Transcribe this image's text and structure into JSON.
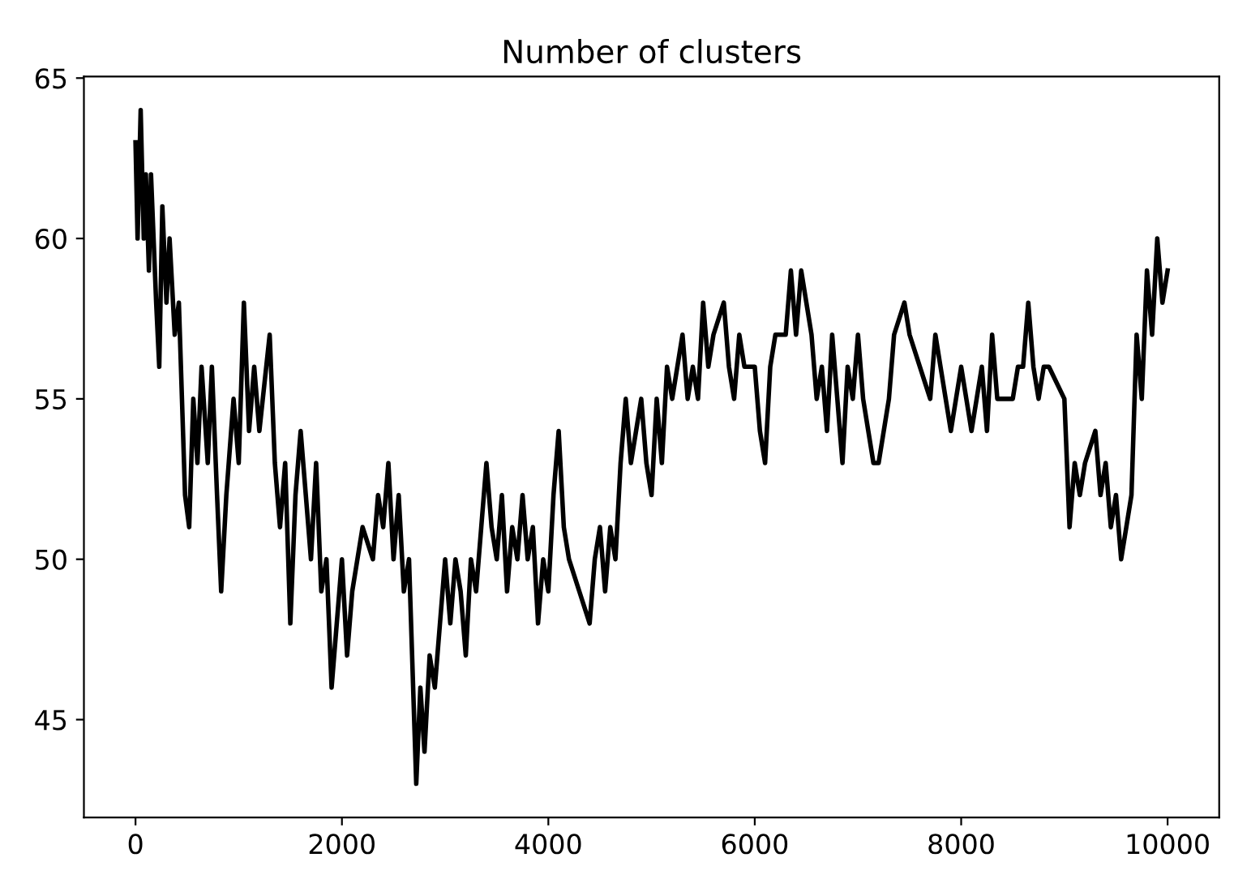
{
  "chart_data": {
    "type": "line",
    "title": "Number of clusters",
    "x": [
      0,
      20,
      50,
      80,
      100,
      130,
      150,
      200,
      230,
      260,
      300,
      330,
      380,
      420,
      450,
      480,
      520,
      560,
      600,
      640,
      700,
      740,
      790,
      830,
      880,
      950,
      1000,
      1050,
      1100,
      1150,
      1200,
      1300,
      1350,
      1400,
      1450,
      1500,
      1550,
      1600,
      1650,
      1700,
      1750,
      1800,
      1850,
      1900,
      1950,
      2000,
      2050,
      2100,
      2200,
      2300,
      2350,
      2400,
      2450,
      2500,
      2550,
      2600,
      2650,
      2700,
      2720,
      2760,
      2800,
      2850,
      2900,
      2950,
      3000,
      3050,
      3100,
      3150,
      3200,
      3250,
      3300,
      3350,
      3400,
      3450,
      3500,
      3550,
      3600,
      3650,
      3700,
      3750,
      3800,
      3850,
      3900,
      3950,
      4000,
      4050,
      4100,
      4150,
      4200,
      4300,
      4400,
      4450,
      4500,
      4550,
      4600,
      4650,
      4700,
      4750,
      4800,
      4850,
      4900,
      4950,
      5000,
      5050,
      5100,
      5150,
      5200,
      5300,
      5350,
      5400,
      5450,
      5500,
      5550,
      5600,
      5700,
      5750,
      5800,
      5850,
      5900,
      6000,
      6050,
      6100,
      6150,
      6200,
      6300,
      6350,
      6400,
      6450,
      6500,
      6550,
      6600,
      6650,
      6700,
      6750,
      6800,
      6850,
      6900,
      6950,
      7000,
      7050,
      7100,
      7150,
      7200,
      7300,
      7350,
      7450,
      7500,
      7600,
      7700,
      7750,
      7800,
      7900,
      7950,
      8000,
      8050,
      8100,
      8150,
      8200,
      8250,
      8300,
      8350,
      8400,
      8500,
      8550,
      8600,
      8650,
      8700,
      8750,
      8800,
      8850,
      9000,
      9050,
      9100,
      9150,
      9200,
      9300,
      9350,
      9400,
      9450,
      9500,
      9550,
      9600,
      9650,
      9700,
      9750,
      9800,
      9850,
      9900,
      9950,
      10000
    ],
    "series": [
      {
        "color": "#000000",
        "values": [
          63,
          60,
          64,
          60,
          62,
          59,
          62,
          58,
          56,
          61,
          58,
          60,
          57,
          58,
          55,
          52,
          51,
          55,
          53,
          56,
          53,
          56,
          52,
          49,
          52,
          55,
          53,
          58,
          54,
          56,
          54,
          57,
          53,
          51,
          53,
          48,
          52,
          54,
          52,
          50,
          53,
          49,
          50,
          46,
          48,
          50,
          47,
          49,
          51,
          50,
          52,
          51,
          53,
          50,
          52,
          49,
          50,
          45,
          43,
          46,
          44,
          47,
          46,
          48,
          50,
          48,
          50,
          49,
          47,
          50,
          49,
          51,
          53,
          51,
          50,
          52,
          49,
          51,
          50,
          52,
          50,
          51,
          48,
          50,
          49,
          52,
          54,
          51,
          50,
          49,
          48,
          50,
          51,
          49,
          51,
          50,
          53,
          55,
          53,
          54,
          55,
          53,
          52,
          55,
          53,
          56,
          55,
          57,
          55,
          56,
          55,
          58,
          56,
          57,
          58,
          56,
          55,
          57,
          56,
          56,
          54,
          53,
          56,
          57,
          57,
          59,
          57,
          59,
          58,
          57,
          55,
          56,
          54,
          57,
          55,
          53,
          56,
          55,
          57,
          55,
          54,
          53,
          53,
          55,
          57,
          58,
          57,
          56,
          55,
          57,
          56,
          54,
          55,
          56,
          55,
          54,
          55,
          56,
          54,
          57,
          55,
          55,
          55,
          56,
          56,
          58,
          56,
          55,
          56,
          56,
          55,
          51,
          53,
          52,
          53,
          54,
          52,
          53,
          51,
          52,
          50,
          51,
          52,
          57,
          55,
          59,
          57,
          60,
          58,
          59
        ]
      }
    ],
    "xlim": [
      -500,
      10500
    ],
    "ylim": [
      41.95,
      65.05
    ],
    "xticks": [
      0,
      2000,
      4000,
      6000,
      8000,
      10000
    ],
    "yticks": [
      45,
      50,
      55,
      60,
      65
    ]
  }
}
